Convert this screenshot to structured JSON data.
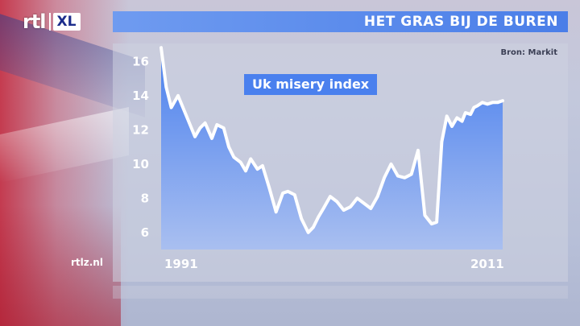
{
  "header": {
    "logo_main": "rtl",
    "logo_badge": "XL",
    "title": "HET GRAS BIJ DE BUREN"
  },
  "source": "Bron: Markit",
  "site": "rtlz.nl",
  "colors": {
    "title_bar": "#4a7ee8",
    "area_top": "#4a80ee",
    "area_bottom": "#a9bff0",
    "line": "#ffffff"
  },
  "chart_data": {
    "type": "area",
    "title": "Uk misery index",
    "x_start_label": "1991",
    "x_end_label": "2011",
    "xlim": [
      1991,
      2011.2
    ],
    "ylim": [
      5,
      17
    ],
    "yticks": [
      6,
      8,
      10,
      12,
      14,
      16
    ],
    "grid": false,
    "x": [
      1991.0,
      1991.3,
      1991.6,
      1992.0,
      1992.5,
      1993.0,
      1993.3,
      1993.6,
      1994.0,
      1994.3,
      1994.7,
      1995.0,
      1995.3,
      1995.7,
      1996.0,
      1996.3,
      1996.7,
      1997.0,
      1997.4,
      1997.8,
      1998.2,
      1998.5,
      1998.9,
      1999.3,
      1999.7,
      2000.0,
      2000.3,
      2000.6,
      2001.0,
      2001.4,
      2001.8,
      2002.2,
      2002.6,
      2003.0,
      2003.4,
      2003.8,
      2004.2,
      2004.6,
      2005.0,
      2005.4,
      2005.8,
      2006.2,
      2006.6,
      2007.0,
      2007.3,
      2007.6,
      2007.9,
      2008.2,
      2008.5,
      2008.8,
      2009.0,
      2009.3,
      2009.5,
      2009.7,
      2010.0,
      2010.3,
      2010.6,
      2010.9,
      2011.2
    ],
    "y": [
      16.8,
      14.5,
      13.3,
      14.0,
      12.8,
      11.6,
      12.1,
      12.4,
      11.5,
      12.3,
      12.1,
      11.0,
      10.4,
      10.1,
      9.6,
      10.3,
      9.7,
      9.9,
      8.6,
      7.2,
      8.3,
      8.4,
      8.2,
      6.8,
      6.0,
      6.3,
      6.9,
      7.4,
      8.1,
      7.8,
      7.3,
      7.5,
      8.0,
      7.7,
      7.4,
      8.1,
      9.2,
      10.0,
      9.3,
      9.2,
      9.4,
      10.8,
      7.0,
      6.5,
      6.6,
      11.3,
      12.8,
      12.2,
      12.7,
      12.5,
      13.0,
      12.9,
      13.3,
      13.4,
      13.6,
      13.5,
      13.6,
      13.6,
      13.7
    ]
  }
}
